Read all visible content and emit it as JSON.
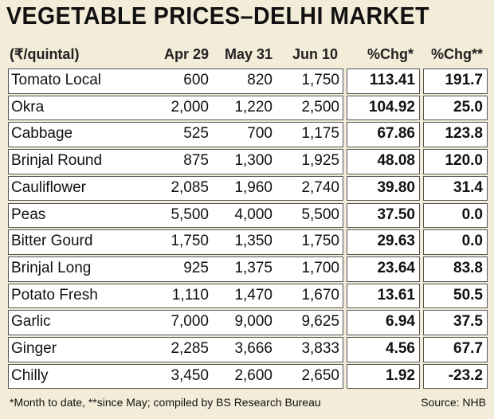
{
  "header": {
    "title": "VEGETABLE PRICES–DELHI MARKET"
  },
  "table": {
    "columns": [
      "(₹/quintal)",
      "Apr 29",
      "May 31",
      "Jun 10",
      "%Chg*",
      "%Chg**"
    ],
    "rows": [
      [
        "Tomato Local",
        "600",
        "820",
        "1,750",
        "113.41",
        "191.7"
      ],
      [
        "Okra",
        "2,000",
        "1,220",
        "2,500",
        "104.92",
        "25.0"
      ],
      [
        "Cabbage",
        "525",
        "700",
        "1,175",
        "67.86",
        "123.8"
      ],
      [
        "Brinjal Round",
        "875",
        "1,300",
        "1,925",
        "48.08",
        "120.0"
      ],
      [
        "Cauliflower",
        "2,085",
        "1,960",
        "2,740",
        "39.80",
        "31.4"
      ],
      [
        "Peas",
        "5,500",
        "4,000",
        "5,500",
        "37.50",
        "0.0"
      ],
      [
        "Bitter Gourd",
        "1,750",
        "1,350",
        "1,750",
        "29.63",
        "0.0"
      ],
      [
        "Brinjal Long",
        "925",
        "1,375",
        "1,700",
        "23.64",
        "83.8"
      ],
      [
        "Potato Fresh",
        "1,110",
        "1,470",
        "1,670",
        "13.61",
        "50.5"
      ],
      [
        "Garlic",
        "7,000",
        "9,000",
        "9,625",
        "6.94",
        "37.5"
      ],
      [
        "Ginger",
        "2,285",
        "3,666",
        "3,833",
        "4.56",
        "67.7"
      ],
      [
        "Chilly",
        "3,450",
        "2,600",
        "2,650",
        "1.92",
        "-23.2"
      ]
    ]
  },
  "footer": {
    "note": "*Month to date, **since May; compiled by BS Research Bureau",
    "source": "Source: NHB"
  }
}
